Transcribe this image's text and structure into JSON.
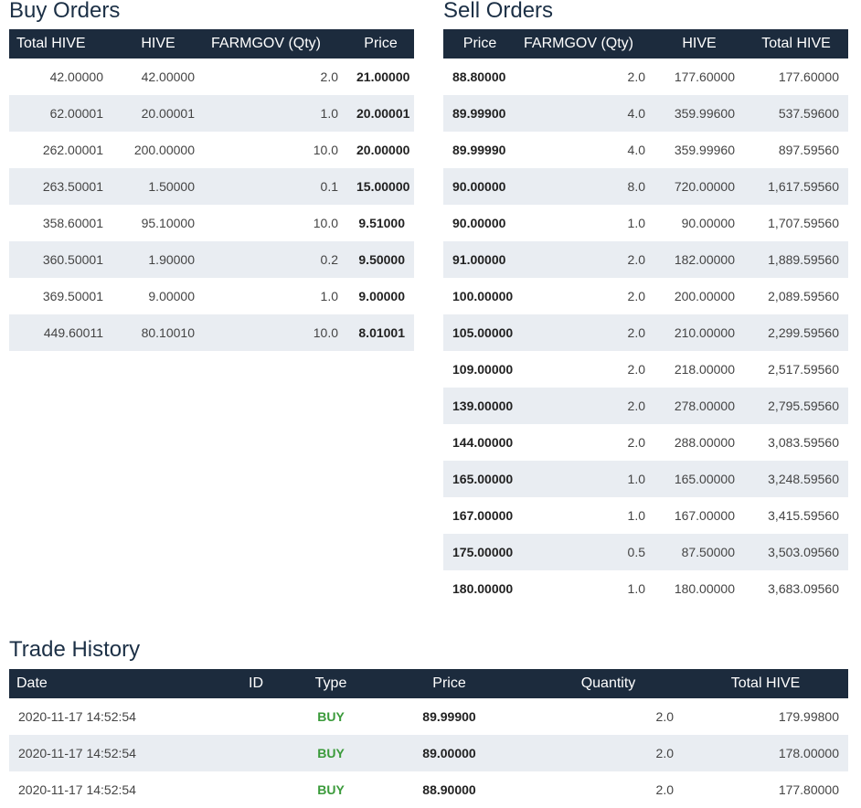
{
  "buy_orders": {
    "title": "Buy Orders",
    "headers": [
      "Total HIVE",
      "HIVE",
      "FARMGOV (Qty)",
      "Price"
    ],
    "rows": [
      [
        "42.00000",
        "42.00000",
        "2.0",
        "21.00000"
      ],
      [
        "62.00001",
        "20.00001",
        "1.0",
        "20.00001"
      ],
      [
        "262.00001",
        "200.00000",
        "10.0",
        "20.00000"
      ],
      [
        "263.50001",
        "1.50000",
        "0.1",
        "15.00000"
      ],
      [
        "358.60001",
        "95.10000",
        "10.0",
        "9.51000"
      ],
      [
        "360.50001",
        "1.90000",
        "0.2",
        "9.50000"
      ],
      [
        "369.50001",
        "9.00000",
        "1.0",
        "9.00000"
      ],
      [
        "449.60011",
        "80.10010",
        "10.0",
        "8.01001"
      ]
    ]
  },
  "sell_orders": {
    "title": "Sell Orders",
    "headers": [
      "Price",
      "FARMGOV (Qty)",
      "HIVE",
      "Total HIVE"
    ],
    "rows": [
      [
        "88.80000",
        "2.0",
        "177.60000",
        "177.60000"
      ],
      [
        "89.99900",
        "4.0",
        "359.99600",
        "537.59600"
      ],
      [
        "89.99990",
        "4.0",
        "359.99960",
        "897.59560"
      ],
      [
        "90.00000",
        "8.0",
        "720.00000",
        "1,617.59560"
      ],
      [
        "90.00000",
        "1.0",
        "90.00000",
        "1,707.59560"
      ],
      [
        "91.00000",
        "2.0",
        "182.00000",
        "1,889.59560"
      ],
      [
        "100.00000",
        "2.0",
        "200.00000",
        "2,089.59560"
      ],
      [
        "105.00000",
        "2.0",
        "210.00000",
        "2,299.59560"
      ],
      [
        "109.00000",
        "2.0",
        "218.00000",
        "2,517.59560"
      ],
      [
        "139.00000",
        "2.0",
        "278.00000",
        "2,795.59560"
      ],
      [
        "144.00000",
        "2.0",
        "288.00000",
        "3,083.59560"
      ],
      [
        "165.00000",
        "1.0",
        "165.00000",
        "3,248.59560"
      ],
      [
        "167.00000",
        "1.0",
        "167.00000",
        "3,415.59560"
      ],
      [
        "175.00000",
        "0.5",
        "87.50000",
        "3,503.09560"
      ],
      [
        "180.00000",
        "1.0",
        "180.00000",
        "3,683.09560"
      ]
    ]
  },
  "trade_history": {
    "title": "Trade History",
    "headers": [
      "Date",
      "ID",
      "Type",
      "Price",
      "Quantity",
      "Total HIVE"
    ],
    "rows": [
      [
        "2020-11-17 14:52:54",
        "",
        "BUY",
        "89.99900",
        "2.0",
        "179.99800"
      ],
      [
        "2020-11-17 14:52:54",
        "",
        "BUY",
        "89.00000",
        "2.0",
        "178.00000"
      ],
      [
        "2020-11-17 14:52:54",
        "",
        "BUY",
        "88.90000",
        "2.0",
        "177.80000"
      ]
    ]
  },
  "colors": {
    "header_bg": "#1c2b3d",
    "title_text": "#1c3046",
    "stripe_bg": "#e9edf2",
    "buy_type": "#3a9a3a"
  }
}
